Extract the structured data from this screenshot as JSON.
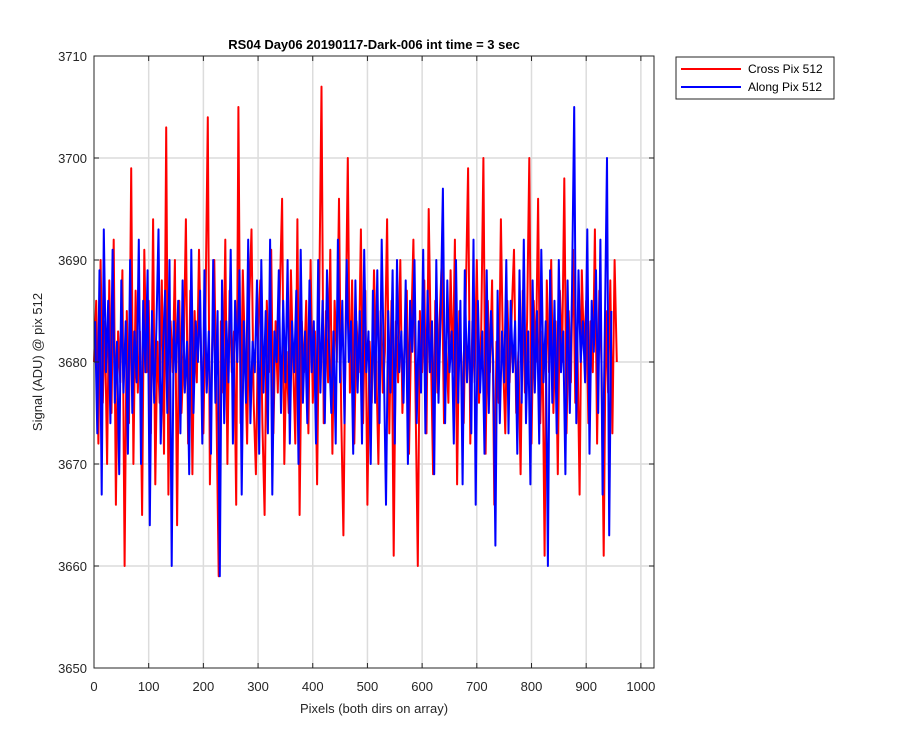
{
  "chart_data": {
    "type": "line",
    "title": "RS04 Day06 20190117-Dark-006 int time = 3 sec",
    "xlabel": "Pixels (both dirs on array)",
    "ylabel": "Signal (ADU) @ pix 512",
    "xlim": [
      0,
      1024
    ],
    "ylim": [
      3650,
      3710
    ],
    "xticks": [
      0,
      100,
      200,
      300,
      400,
      500,
      600,
      700,
      800,
      900,
      1000
    ],
    "yticks": [
      3650,
      3660,
      3670,
      3680,
      3690,
      3700,
      3710
    ],
    "grid": true,
    "legend_position": "outside-top-right",
    "series_mean": 3681,
    "series": [
      {
        "name": "Cross Pix 512",
        "color": "#ff0000",
        "x_start": 0,
        "x_step": 4,
        "values": [
          3680,
          3686,
          3672,
          3690,
          3676,
          3684,
          3670,
          3688,
          3675,
          3692,
          3666,
          3683,
          3678,
          3689,
          3660,
          3685,
          3674,
          3699,
          3670,
          3687,
          3677,
          3683,
          3665,
          3691,
          3679,
          3686,
          3673,
          3694,
          3668,
          3682,
          3676,
          3688,
          3671,
          3703,
          3667,
          3684,
          3679,
          3690,
          3664,
          3686,
          3675,
          3681,
          3694,
          3672,
          3687,
          3669,
          3685,
          3678,
          3691,
          3680,
          3673,
          3686,
          3704,
          3668,
          3681,
          3690,
          3675,
          3659,
          3684,
          3677,
          3692,
          3670,
          3687,
          3679,
          3683,
          3666,
          3705,
          3674,
          3689,
          3681,
          3672,
          3686,
          3693,
          3676,
          3669,
          3683,
          3688,
          3674,
          3665,
          3686,
          3679,
          3691,
          3673,
          3684,
          3677,
          3687,
          3696,
          3670,
          3681,
          3675,
          3689,
          3680,
          3672,
          3694,
          3665,
          3684,
          3679,
          3686,
          3673,
          3690,
          3676,
          3683,
          3668,
          3687,
          3707,
          3674,
          3685,
          3678,
          3691,
          3671,
          3686,
          3680,
          3696,
          3675,
          3663,
          3683,
          3700,
          3677,
          3688,
          3672,
          3684,
          3679,
          3693,
          3674,
          3687,
          3666,
          3682,
          3676,
          3689,
          3680,
          3670,
          3685,
          3677,
          3681,
          3694,
          3673,
          3686,
          3661,
          3684,
          3678,
          3690,
          3675,
          3682,
          3687,
          3671,
          3683,
          3692,
          3676,
          3660,
          3685,
          3679,
          3688,
          3673,
          3695,
          3681,
          3669,
          3686,
          3677,
          3684,
          3690,
          3674,
          3682,
          3676,
          3689,
          3679,
          3692,
          3668,
          3685,
          3680,
          3674,
          3687,
          3699,
          3672,
          3684,
          3678,
          3690,
          3676,
          3683,
          3700,
          3671,
          3686,
          3679,
          3688,
          3666,
          3682,
          3676,
          3694,
          3680,
          3673,
          3686,
          3678,
          3685,
          3691,
          3675,
          3681,
          3669,
          3687,
          3677,
          3684,
          3700,
          3672,
          3686,
          3680,
          3696,
          3674,
          3683,
          3661,
          3688,
          3679,
          3690,
          3675,
          3684,
          3669,
          3687,
          3680,
          3698,
          3673,
          3685,
          3678,
          3691,
          3676,
          3682,
          3667,
          3689,
          3681,
          3686,
          3674,
          3684,
          3679,
          3693,
          3672,
          3687,
          3680,
          3661,
          3685,
          3677,
          3688,
          3673,
          3690,
          3680
        ]
      },
      {
        "name": "Along Pix 512",
        "color": "#0000ff",
        "x_start": 2,
        "x_step": 4,
        "values": [
          3684,
          3673,
          3689,
          3667,
          3693,
          3679,
          3686,
          3674,
          3691,
          3676,
          3682,
          3669,
          3688,
          3677,
          3684,
          3671,
          3690,
          3675,
          3683,
          3678,
          3692,
          3670,
          3686,
          3679,
          3689,
          3664,
          3685,
          3676,
          3683,
          3693,
          3672,
          3681,
          3687,
          3675,
          3690,
          3660,
          3684,
          3679,
          3686,
          3673,
          3688,
          3677,
          3682,
          3669,
          3691,
          3675,
          3684,
          3680,
          3687,
          3672,
          3689,
          3677,
          3683,
          3671,
          3690,
          3676,
          3685,
          3659,
          3688,
          3674,
          3684,
          3678,
          3691,
          3672,
          3686,
          3680,
          3689,
          3667,
          3684,
          3676,
          3692,
          3674,
          3682,
          3679,
          3688,
          3671,
          3690,
          3677,
          3685,
          3673,
          3692,
          3667,
          3683,
          3680,
          3689,
          3675,
          3686,
          3678,
          3690,
          3672,
          3684,
          3679,
          3687,
          3670,
          3691,
          3676,
          3683,
          3674,
          3688,
          3679,
          3684,
          3672,
          3690,
          3677,
          3686,
          3674,
          3689,
          3681,
          3675,
          3683,
          3672,
          3692,
          3678,
          3686,
          3674,
          3690,
          3680,
          3684,
          3671,
          3688,
          3677,
          3685,
          3672,
          3691,
          3679,
          3683,
          3670,
          3687,
          3676,
          3689,
          3674,
          3692,
          3680,
          3666,
          3685,
          3677,
          3689,
          3672,
          3690,
          3679,
          3683,
          3676,
          3688,
          3670,
          3686,
          3681,
          3690,
          3674,
          3684,
          3677,
          3691,
          3673,
          3687,
          3679,
          3684,
          3669,
          3690,
          3676,
          3685,
          3697,
          3674,
          3688,
          3679,
          3683,
          3672,
          3690,
          3676,
          3686,
          3668,
          3689,
          3678,
          3684,
          3673,
          3692,
          3666,
          3686,
          3677,
          3683,
          3671,
          3689,
          3675,
          3685,
          3680,
          3662,
          3687,
          3674,
          3683,
          3678,
          3690,
          3673,
          3686,
          3679,
          3684,
          3671,
          3689,
          3676,
          3692,
          3674,
          3683,
          3668,
          3688,
          3677,
          3685,
          3672,
          3691,
          3678,
          3684,
          3660,
          3689,
          3676,
          3686,
          3673,
          3690,
          3679,
          3683,
          3669,
          3688,
          3675,
          3687,
          3705,
          3674,
          3689,
          3680,
          3684,
          3678,
          3693,
          3671,
          3686,
          3681,
          3689,
          3675,
          3692,
          3667,
          3683,
          3700,
          3663,
          3685
        ]
      }
    ]
  }
}
